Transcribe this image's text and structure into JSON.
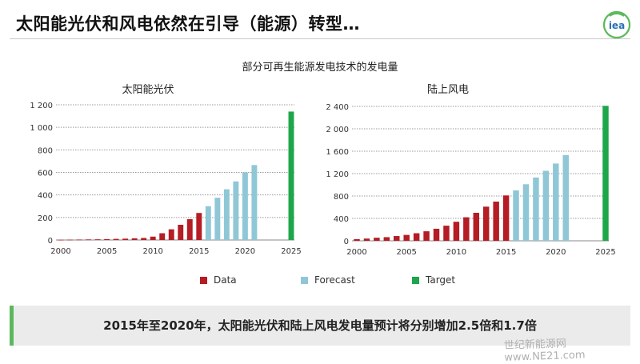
{
  "header": {
    "title": "太阳能光伏和风电依然在引导（能源）转型…",
    "logo_text": "iea"
  },
  "subtitle": "部分可再生能源发电技术的发电量",
  "colors": {
    "data": "#b51c24",
    "forecast": "#8fc7d6",
    "target": "#1ea64a",
    "grid": "#999999",
    "accent": "#5cb85c"
  },
  "chart_data": [
    {
      "type": "bar",
      "title": "太阳能光伏",
      "x_ticks": [
        2000,
        2005,
        2010,
        2015,
        2020,
        2025
      ],
      "ylim": [
        0,
        1200
      ],
      "y_ticks": [
        0,
        200,
        400,
        600,
        800,
        1000,
        1200
      ],
      "y_tick_labels": [
        "0",
        "200",
        "400",
        "600",
        "800",
        "1 000",
        "1 200"
      ],
      "grid": true,
      "series": [
        {
          "name": "Data",
          "x": [
            2000,
            2001,
            2002,
            2003,
            2004,
            2005,
            2006,
            2007,
            2008,
            2009,
            2010,
            2011,
            2012,
            2013,
            2014,
            2015
          ],
          "values": [
            2,
            3,
            4,
            5,
            6,
            8,
            10,
            12,
            15,
            18,
            30,
            60,
            95,
            135,
            185,
            240
          ]
        },
        {
          "name": "Forecast",
          "x": [
            2016,
            2017,
            2018,
            2019,
            2020,
            2021
          ],
          "values": [
            300,
            375,
            450,
            520,
            600,
            665
          ]
        },
        {
          "name": "Target",
          "x": [
            2025
          ],
          "values": [
            1140
          ]
        }
      ]
    },
    {
      "type": "bar",
      "title": "陆上风电",
      "x_ticks": [
        2000,
        2005,
        2010,
        2015,
        2020,
        2025
      ],
      "ylim": [
        0,
        2400
      ],
      "y_ticks": [
        0,
        400,
        800,
        1200,
        1600,
        2000,
        2400
      ],
      "y_tick_labels": [
        "0",
        "400",
        "800",
        "1 200",
        "1 600",
        "2 000",
        "2 400"
      ],
      "grid": true,
      "series": [
        {
          "name": "Data",
          "x": [
            2000,
            2001,
            2002,
            2003,
            2004,
            2005,
            2006,
            2007,
            2008,
            2009,
            2010,
            2011,
            2012,
            2013,
            2014,
            2015
          ],
          "values": [
            30,
            40,
            55,
            65,
            85,
            105,
            135,
            170,
            215,
            270,
            340,
            420,
            500,
            610,
            700,
            810
          ]
        },
        {
          "name": "Forecast",
          "x": [
            2016,
            2017,
            2018,
            2019,
            2020,
            2021
          ],
          "values": [
            900,
            1010,
            1130,
            1250,
            1380,
            1530
          ]
        },
        {
          "name": "Target",
          "x": [
            2025
          ],
          "values": [
            2410
          ]
        }
      ]
    }
  ],
  "legend": [
    {
      "label": "Data",
      "color": "#b51c24"
    },
    {
      "label": "Forecast",
      "color": "#8fc7d6"
    },
    {
      "label": "Target",
      "color": "#1ea64a"
    }
  ],
  "summary": "2015年至2020年，太阳能光伏和陆上风电发电量预计将分别增加2.5倍和1.7倍",
  "watermark": "世纪新能源网 www.NE21.com"
}
